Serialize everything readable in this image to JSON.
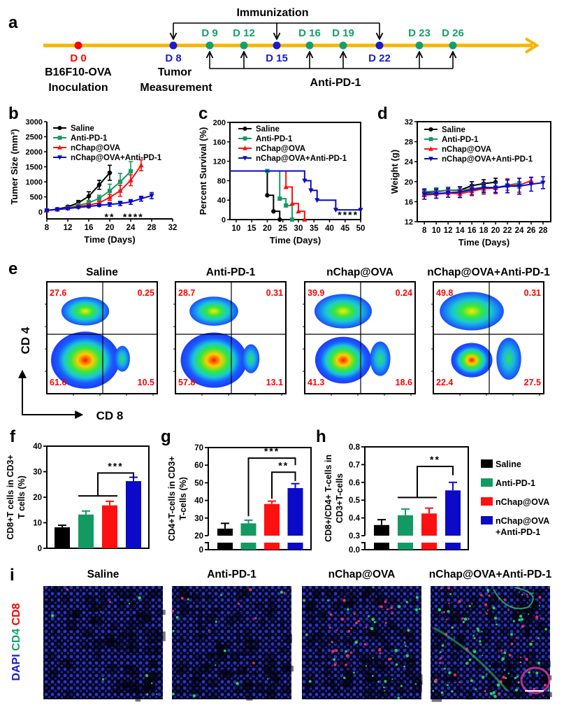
{
  "colors": {
    "saline": "#000000",
    "anti_pd1": "#139a62",
    "nchap": "#ff1010",
    "combo": "#0a0ac8",
    "timeline": "#f7b500",
    "day_green": "#14a06b",
    "day_blue": "#1a1ad0",
    "day_red": "#ff0000",
    "quadrant_text": "#ff0000"
  },
  "panel_labels": {
    "a": "a",
    "b": "b",
    "c": "c",
    "d": "d",
    "e": "e",
    "f": "f",
    "g": "g",
    "h": "h",
    "i": "i"
  },
  "timeline": {
    "immunization_label": "Immunization",
    "anti_pd1_label": "Anti-PD-1",
    "inoculation_line1": "B16F10-OVA",
    "inoculation_line2": "Inoculation",
    "measurement_line1": "Tumor",
    "measurement_line2": "Measurement",
    "days": [
      {
        "label": "D 0",
        "day": 0,
        "type": "inoculation"
      },
      {
        "label": "D 8",
        "day": 8,
        "type": "immunization"
      },
      {
        "label": "D 9",
        "day": 9,
        "type": "anti_pd1"
      },
      {
        "label": "D 12",
        "day": 12,
        "type": "anti_pd1"
      },
      {
        "label": "D 15",
        "day": 15,
        "type": "immunization"
      },
      {
        "label": "D 16",
        "day": 16,
        "type": "anti_pd1"
      },
      {
        "label": "D 19",
        "day": 19,
        "type": "anti_pd1"
      },
      {
        "label": "D 22",
        "day": 22,
        "type": "immunization"
      },
      {
        "label": "D 23",
        "day": 23,
        "type": "anti_pd1"
      },
      {
        "label": "D 26",
        "day": 26,
        "type": "anti_pd1"
      }
    ]
  },
  "groups": [
    "Saline",
    "Anti-PD-1",
    "nChap@OVA",
    "nChap@OVA+Anti-PD-1"
  ],
  "chart_data": [
    {
      "id": "b",
      "type": "line",
      "xlabel": "Time (Days)",
      "ylabel": "Tumer Size (mm³)",
      "xlim": [
        8,
        32
      ],
      "ylim": [
        0,
        3000
      ],
      "xticks": [
        "8",
        "12",
        "16",
        "20",
        "24",
        "28",
        "32"
      ],
      "yticks": [
        "0",
        "500",
        "1000",
        "1500",
        "2000",
        "2500",
        "3000"
      ],
      "legend": "top-left",
      "grid": false,
      "series": [
        {
          "name": "Saline",
          "color": "#000000",
          "marker": "circle",
          "x": [
            8,
            10,
            12,
            14,
            16,
            18,
            20
          ],
          "y": [
            50,
            90,
            170,
            300,
            520,
            900,
            1300
          ],
          "error": [
            20,
            30,
            40,
            80,
            150,
            150,
            250
          ]
        },
        {
          "name": "Anti-PD-1",
          "color": "#139a62",
          "marker": "square",
          "x": [
            8,
            10,
            12,
            14,
            16,
            18,
            20,
            22,
            24
          ],
          "y": [
            50,
            80,
            130,
            220,
            300,
            450,
            700,
            1000,
            1350
          ],
          "error": [
            20,
            30,
            40,
            60,
            80,
            100,
            220,
            280,
            320
          ]
        },
        {
          "name": "nChap@OVA",
          "color": "#ff1010",
          "marker": "triangle-up",
          "x": [
            8,
            10,
            12,
            14,
            16,
            18,
            20,
            22,
            24,
            26
          ],
          "y": [
            50,
            80,
            120,
            180,
            230,
            300,
            480,
            700,
            1050,
            1550
          ],
          "error": [
            20,
            20,
            30,
            40,
            50,
            60,
            100,
            180,
            180,
            180
          ]
        },
        {
          "name": "nChap@OVA+Anti-PD-1",
          "color": "#0a0ac8",
          "marker": "triangle-down",
          "x": [
            8,
            10,
            12,
            14,
            16,
            18,
            20,
            22,
            24,
            26,
            28
          ],
          "y": [
            50,
            80,
            110,
            150,
            180,
            220,
            250,
            280,
            330,
            440,
            540
          ],
          "error": [
            20,
            20,
            20,
            30,
            40,
            40,
            60,
            70,
            80,
            80,
            100
          ]
        }
      ],
      "annotations": [
        {
          "text": "**",
          "x": 20
        },
        {
          "text": "****",
          "x": 24.5
        }
      ]
    },
    {
      "id": "c",
      "type": "line",
      "xlabel": "Time (Days)",
      "ylabel": "Percent Survival (%)",
      "xlim": [
        8,
        50
      ],
      "ylim": [
        0,
        200
      ],
      "xticks": [
        "10",
        "15",
        "20",
        "25",
        "30",
        "35",
        "40",
        "45",
        "50"
      ],
      "yticks": [
        "0",
        "40",
        "80",
        "120",
        "160",
        "200"
      ],
      "legend": "top-left",
      "grid": false,
      "series": [
        {
          "name": "Saline",
          "color": "#000000",
          "marker": "circle",
          "x": [
            20,
            22,
            24
          ],
          "y": [
            50,
            17,
            0
          ]
        },
        {
          "name": "Anti-PD-1",
          "color": "#139a62",
          "marker": "square",
          "x": [
            20,
            24,
            26,
            28
          ],
          "y": [
            100,
            43,
            29,
            0
          ]
        },
        {
          "name": "nChap@OVA",
          "color": "#ff1010",
          "marker": "triangle-up",
          "x": [
            26,
            28,
            30,
            32
          ],
          "y": [
            67,
            33,
            17,
            0
          ]
        },
        {
          "name": "nChap@OVA+Anti-PD-1",
          "color": "#0a0ac8",
          "marker": "triangle-down",
          "x": [
            32,
            34,
            36,
            42,
            50
          ],
          "y": [
            80,
            60,
            40,
            20,
            20
          ]
        }
      ],
      "annotations": [
        {
          "text": "****",
          "x": 46
        }
      ]
    },
    {
      "id": "d",
      "type": "line",
      "xlabel": "Time (Days)",
      "ylabel": "Weight (g)",
      "xlim": [
        6.8,
        29.3
      ],
      "ylim": [
        12,
        32
      ],
      "xticks": [
        "8",
        "10",
        "12",
        "14",
        "16",
        "18",
        "20",
        "22",
        "24",
        "26",
        "28"
      ],
      "yticks": [
        "12",
        "16",
        "20",
        "24",
        "28",
        "32"
      ],
      "legend": "top-left",
      "grid": false,
      "series": [
        {
          "name": "Saline",
          "color": "#000000",
          "marker": "circle",
          "x": [
            8,
            10,
            12,
            14,
            16,
            18,
            20
          ],
          "y": [
            17.8,
            18.0,
            18.3,
            18.3,
            19.2,
            19.6,
            19.9
          ],
          "error": [
            0.6,
            0.7,
            0.6,
            0.7,
            0.8,
            0.8,
            0.8
          ]
        },
        {
          "name": "Anti-PD-1",
          "color": "#139a62",
          "marker": "square",
          "x": [
            8,
            10,
            12,
            14,
            16,
            18,
            20,
            22,
            24
          ],
          "y": [
            18.0,
            18.1,
            18.3,
            18.2,
            18.6,
            18.9,
            18.8,
            19.3,
            19.7
          ],
          "error": [
            0.6,
            0.7,
            0.6,
            0.7,
            0.8,
            0.9,
            0.9,
            1.0,
            1.0
          ]
        },
        {
          "name": "nChap@OVA",
          "color": "#ff1010",
          "marker": "triangle-up",
          "x": [
            8,
            10,
            12,
            14,
            16,
            18,
            20,
            22,
            24,
            26
          ],
          "y": [
            17.3,
            17.5,
            17.7,
            17.6,
            18.1,
            18.6,
            18.7,
            19.2,
            19.3,
            20.2
          ],
          "error": [
            0.8,
            0.8,
            0.8,
            0.8,
            0.9,
            1.1,
            1.1,
            1.4,
            1.4,
            0.6
          ]
        },
        {
          "name": "nChap@OVA+Anti-PD-1",
          "color": "#0a0ac8",
          "marker": "triangle-down",
          "x": [
            8,
            10,
            12,
            14,
            16,
            18,
            20,
            22,
            24,
            26,
            28
          ],
          "y": [
            17.5,
            17.6,
            17.8,
            17.9,
            18.4,
            18.8,
            18.8,
            19.1,
            19.1,
            19.5,
            19.8
          ],
          "error": [
            1.0,
            0.9,
            0.9,
            1.0,
            1.0,
            1.0,
            1.0,
            1.3,
            1.6,
            1.4,
            1.2
          ]
        }
      ]
    },
    {
      "id": "f",
      "type": "bar",
      "ylabel": [
        "CD8+T cells in CD3+",
        "T cells (%)"
      ],
      "categories": [
        "Saline",
        "Anti-PD-1",
        "nChap@OVA",
        "nChap@OVA+Anti-PD-1"
      ],
      "values": [
        8.2,
        13.2,
        16.8,
        26.3
      ],
      "error": [
        0.8,
        1.4,
        1.6,
        1.5
      ],
      "ylim": [
        0,
        40
      ],
      "yticks": [
        "0",
        "10",
        "20",
        "30",
        "40"
      ],
      "significance": [
        {
          "label": "***",
          "from": [
            1,
            2
          ],
          "to": 3,
          "base": 20.5,
          "top": 29.5,
          "end": 27.5
        }
      ]
    },
    {
      "id": "g",
      "type": "bar",
      "ylabel": [
        "CD4+T-cells in CD3+",
        "T-cells (%)"
      ],
      "categories": [
        "Saline",
        "Anti-PD-1",
        "nChap@OVA",
        "nChap@OVA+Anti-PD-1"
      ],
      "values": [
        24,
        27,
        38,
        47
      ],
      "error": [
        3,
        1.8,
        1.6,
        2.5
      ],
      "ylim": [
        0,
        70
      ],
      "axis_break": [
        0,
        20
      ],
      "yticks": [
        "0",
        "20",
        "30",
        "40",
        "50",
        "60",
        "70"
      ],
      "significance": [
        {
          "label": "***",
          "from": [
            1
          ],
          "to": 3,
          "base": 31,
          "top": 64,
          "end": 60
        },
        {
          "label": "**",
          "from": [
            2
          ],
          "to": 3,
          "base": 41,
          "top": 56,
          "end": 51
        }
      ]
    },
    {
      "id": "h",
      "type": "bar",
      "ylabel": [
        "CD8+/CD4+ T-cells in",
        "CD3+T-cells"
      ],
      "categories": [
        "Saline",
        "Anti-PD-1",
        "nChap@OVA",
        "nChap@OVA+Anti-PD-1"
      ],
      "values": [
        0.36,
        0.415,
        0.425,
        0.555
      ],
      "error": [
        0.03,
        0.035,
        0.03,
        0.045
      ],
      "ylim": [
        0,
        0.8
      ],
      "axis_break": [
        0,
        0.3
      ],
      "yticks": [
        "0.0",
        "0.3",
        "0.4",
        "0.5",
        "0.6",
        "0.7",
        "0.8"
      ],
      "significance": [
        {
          "label": "**",
          "from": [
            1,
            2
          ],
          "to": 3,
          "base": 0.515,
          "top": 0.69,
          "end": 0.64
        }
      ]
    }
  ],
  "bar_legend": [
    {
      "label": "Saline",
      "color": "#000000"
    },
    {
      "label": "Anti-PD-1",
      "color": "#139a62"
    },
    {
      "label": "nChap@OVA",
      "color": "#ff1010"
    },
    {
      "label": "nChap@OVA",
      "label2": "+Anti-PD-1",
      "color": "#0a0ac8"
    }
  ],
  "flow": {
    "x_axis": "CD 8",
    "y_axis": "CD 4",
    "plots": [
      {
        "title": "Saline",
        "q": [
          "27.6",
          "0.25",
          "61.6",
          "10.5"
        ]
      },
      {
        "title": "Anti-PD-1",
        "q": [
          "28.7",
          "0.31",
          "57.8",
          "13.1"
        ]
      },
      {
        "title": "nChap@OVA",
        "q": [
          "39.9",
          "0.24",
          "41.3",
          "18.6"
        ]
      },
      {
        "title": "nChap@OVA+Anti-PD-1",
        "q": [
          "49.8",
          "0.31",
          "22.4",
          "27.5"
        ]
      }
    ]
  },
  "imaging": {
    "stain_labels": {
      "dapi": "DAPI",
      "cd4": "CD4",
      "cd8": "CD8"
    },
    "titles": [
      "Saline",
      "Anti-PD-1",
      "nChap@OVA",
      "nChap@OVA+Anti-PD-1"
    ]
  }
}
